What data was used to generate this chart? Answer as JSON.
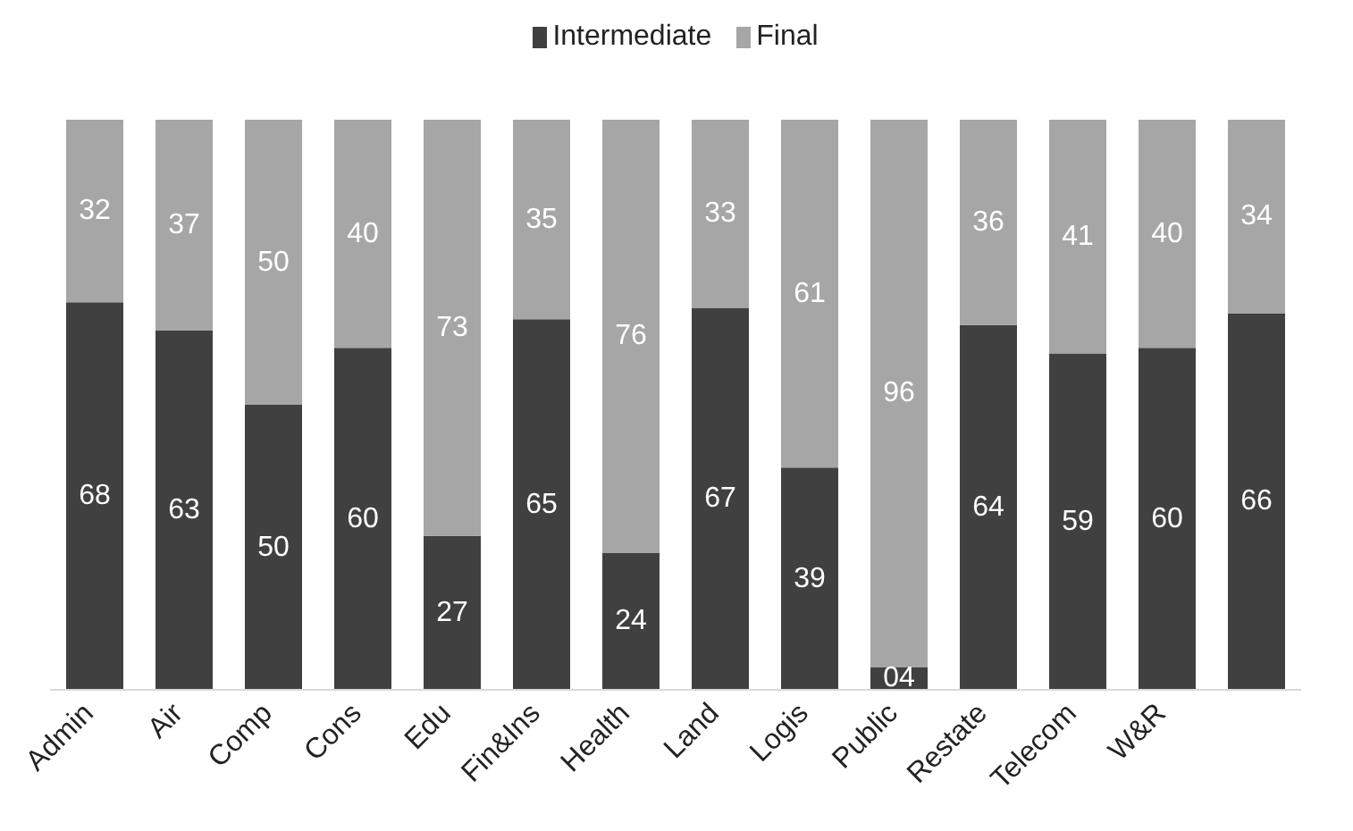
{
  "chart_data": {
    "type": "bar",
    "stacked": true,
    "legend": "top",
    "categories": [
      "Admin",
      "Air",
      "Comp",
      "Cons",
      "Edu",
      "Fin&Ins",
      "Health",
      "Land",
      "Logis",
      "Public",
      "Restate",
      "Telecom",
      "W&R",
      null
    ],
    "series": [
      {
        "name": "Intermediate",
        "color": "#404040",
        "values": [
          68,
          63,
          50,
          60,
          27,
          65,
          24,
          67,
          39,
          4,
          64,
          59,
          60,
          66
        ],
        "value_labels": [
          "68",
          "63",
          "50",
          "60",
          "27",
          "65",
          "24",
          "67",
          "39",
          "04",
          "64",
          "59",
          "60",
          "66"
        ]
      },
      {
        "name": "Final",
        "color": "#a6a6a6",
        "values": [
          32,
          37,
          50,
          40,
          73,
          35,
          76,
          33,
          61,
          96,
          36,
          41,
          40,
          34
        ],
        "value_labels": [
          "32",
          "37",
          "50",
          "40",
          "73",
          "35",
          "76",
          "33",
          "61",
          "96",
          "36",
          "41",
          "40",
          "34"
        ]
      }
    ]
  }
}
